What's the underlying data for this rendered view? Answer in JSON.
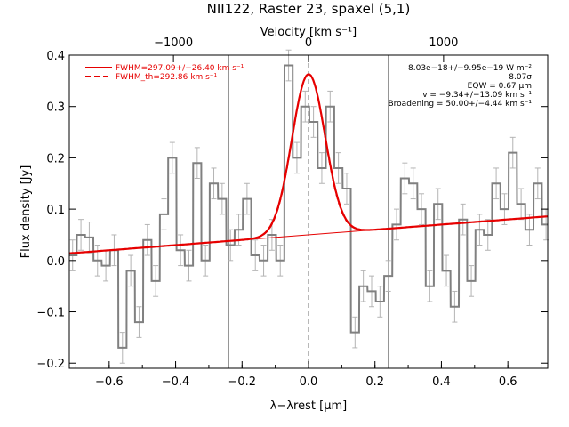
{
  "chart_data": {
    "type": "line",
    "title": "NII122, Raster 23, spaxel (5,1)",
    "xlabel": "λ−λrest [μm]",
    "ylabel": "Flux density [Jy]",
    "top_xlabel": "Velocity [km s⁻¹]",
    "xlim": [
      -0.72,
      0.72
    ],
    "ylim": [
      -0.21,
      0.4
    ],
    "x_ticks": [
      -0.6,
      -0.4,
      -0.2,
      0.0,
      0.2,
      0.4,
      0.6
    ],
    "x_tick_labels": [
      "−0.6",
      "−0.4",
      "−0.2",
      "0.0",
      "0.2",
      "0.4",
      "0.6"
    ],
    "y_ticks": [
      -0.2,
      -0.1,
      0.0,
      0.1,
      0.2,
      0.3,
      0.4
    ],
    "y_tick_labels": [
      "−0.2",
      "−0.1",
      "0.0",
      "0.1",
      "0.2",
      "0.3",
      "0.4"
    ],
    "top_ticks_velocity": [
      -1000,
      0,
      1000
    ],
    "top_tick_labels": [
      "−1000",
      "0",
      "1000"
    ],
    "velocity_per_micron": 2460,
    "vertical_lines": [
      -0.24,
      0.24
    ],
    "center_line": 0.0,
    "bin_width": 0.0245,
    "spectrum_x": [
      -0.71,
      -0.685,
      -0.66,
      -0.635,
      -0.61,
      -0.585,
      -0.56,
      -0.535,
      -0.51,
      -0.485,
      -0.46,
      -0.435,
      -0.41,
      -0.385,
      -0.36,
      -0.335,
      -0.31,
      -0.285,
      -0.26,
      -0.235,
      -0.21,
      -0.185,
      -0.16,
      -0.135,
      -0.11,
      -0.085,
      -0.06,
      -0.035,
      -0.01,
      0.015,
      0.04,
      0.065,
      0.09,
      0.115,
      0.14,
      0.165,
      0.19,
      0.215,
      0.24,
      0.265,
      0.29,
      0.315,
      0.34,
      0.365,
      0.39,
      0.415,
      0.44,
      0.465,
      0.49,
      0.515,
      0.54,
      0.565,
      0.59,
      0.615,
      0.64,
      0.665,
      0.69,
      0.715
    ],
    "spectrum_y": [
      0.01,
      0.05,
      0.045,
      0.0,
      -0.01,
      0.02,
      -0.17,
      -0.02,
      -0.12,
      0.04,
      -0.04,
      0.09,
      0.2,
      0.02,
      -0.01,
      0.19,
      0.0,
      0.15,
      0.12,
      0.03,
      0.06,
      0.12,
      0.01,
      0.0,
      0.05,
      0.0,
      0.38,
      0.2,
      0.3,
      0.27,
      0.18,
      0.3,
      0.18,
      0.14,
      -0.14,
      -0.05,
      -0.06,
      -0.08,
      -0.03,
      0.07,
      0.16,
      0.15,
      0.1,
      -0.05,
      0.11,
      -0.02,
      -0.09,
      0.08,
      -0.04,
      0.06,
      0.05,
      0.15,
      0.1,
      0.21,
      0.11,
      0.06,
      0.15,
      0.07
    ],
    "spectrum_err": [
      0.03,
      0.03,
      0.03,
      0.03,
      0.03,
      0.03,
      0.03,
      0.03,
      0.03,
      0.03,
      0.03,
      0.03,
      0.03,
      0.03,
      0.03,
      0.03,
      0.03,
      0.03,
      0.03,
      0.03,
      0.03,
      0.03,
      0.03,
      0.03,
      0.03,
      0.03,
      0.03,
      0.03,
      0.03,
      0.03,
      0.03,
      0.03,
      0.03,
      0.03,
      0.03,
      0.03,
      0.03,
      0.03,
      0.03,
      0.03,
      0.03,
      0.03,
      0.03,
      0.03,
      0.03,
      0.03,
      0.03,
      0.03,
      0.03,
      0.03,
      0.03,
      0.03,
      0.03,
      0.03,
      0.03,
      0.03,
      0.03,
      0.03
    ],
    "continuum": {
      "slope": 0.05,
      "intercept": 0.05
    },
    "fit": {
      "amplitude": 0.313,
      "center": 0.0,
      "sigma": 0.05
    },
    "legend": [
      {
        "label": "FWHM=297.09+/−26.40 km s⁻¹",
        "style": "solid"
      },
      {
        "label": "FWHM_th=292.86 km s⁻¹",
        "style": "dashed"
      }
    ],
    "annotations": [
      "8.03e−18+/−9.95e−19 W m⁻²",
      "8.07σ",
      "EQW = 0.67 μm",
      "v = −9.34+/−13.09 km s⁻¹",
      "Broadening = 50.00+/−4.44 km s⁻¹"
    ],
    "colors": {
      "spectrum": "#808080",
      "errorbar": "#b4b4b4",
      "fit": "#e60000",
      "continuum": "#e60000",
      "center_line": "#a0a0a0",
      "ref_lines": "#808080"
    }
  }
}
